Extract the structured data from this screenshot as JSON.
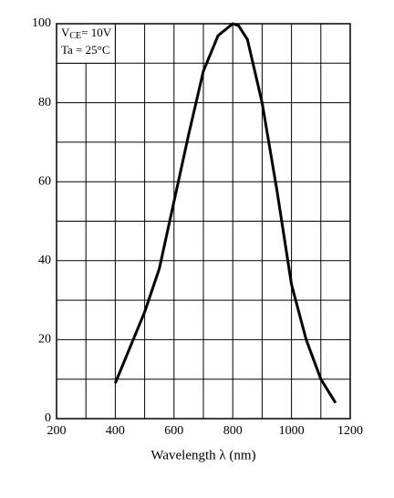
{
  "chart_data": {
    "type": "line",
    "x_label": "Wavelength  λ (nm)",
    "annotation": {
      "symbol": "V",
      "subscript": "CE",
      "text": "= 10V",
      "line2": "Ta = 25°C"
    },
    "series": [
      {
        "color": "#000000",
        "x": [
          400,
          450,
          500,
          550,
          600,
          650,
          700,
          750,
          800,
          820,
          850,
          900,
          950,
          1000,
          1050,
          1100,
          1150
        ],
        "values": [
          9,
          18,
          27,
          38,
          55,
          72,
          88,
          97,
          100,
          99.5,
          96,
          80,
          58,
          34,
          20,
          10,
          4
        ]
      }
    ],
    "xlim": [
      200,
      1200
    ],
    "xticks": [
      200,
      400,
      600,
      800,
      1000,
      1200
    ],
    "ylim": [
      0,
      100
    ],
    "yticks": [
      0,
      20,
      40,
      60,
      80,
      100
    ],
    "minor_xticks": [
      300,
      500,
      700,
      900,
      1100
    ],
    "minor_yticks": [
      10,
      30,
      50,
      70,
      90
    ],
    "grid": true
  }
}
